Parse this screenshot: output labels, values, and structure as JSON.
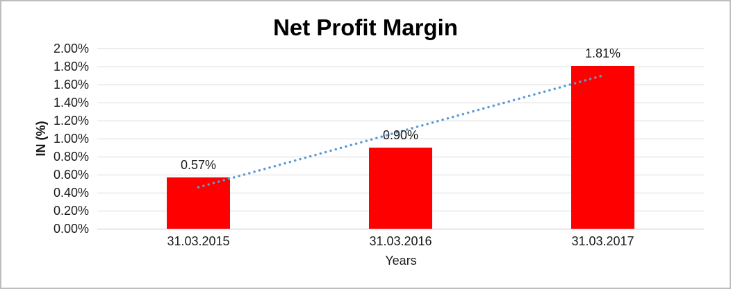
{
  "chart_data": {
    "type": "bar",
    "title": "Net Profit Margin",
    "categories": [
      "31.03.2015",
      "31.03.2016",
      "31.03.2017"
    ],
    "values": [
      0.57,
      0.9,
      1.81
    ],
    "data_labels": [
      "0.57%",
      "0.90%",
      "1.81%"
    ],
    "xlabel": "Years",
    "ylabel": "IN (%)",
    "ylim": [
      0,
      2.0
    ],
    "y_tick_step": 0.2,
    "y_tick_labels": [
      "0.00%",
      "0.20%",
      "0.40%",
      "0.60%",
      "0.80%",
      "1.00%",
      "1.20%",
      "1.40%",
      "1.60%",
      "1.80%",
      "2.00%"
    ],
    "grid": true,
    "legend": "none",
    "bar_color": "#FF0000",
    "gridline_color": "#D9D9D9",
    "axis_line_color": "#C3C3C3",
    "trendline": {
      "type": "linear",
      "style": "dotted",
      "color": "#5B9BD5",
      "start": {
        "category": "31.03.2015",
        "value": 0.46
      },
      "end": {
        "category": "31.03.2017",
        "value": 1.7
      }
    }
  }
}
